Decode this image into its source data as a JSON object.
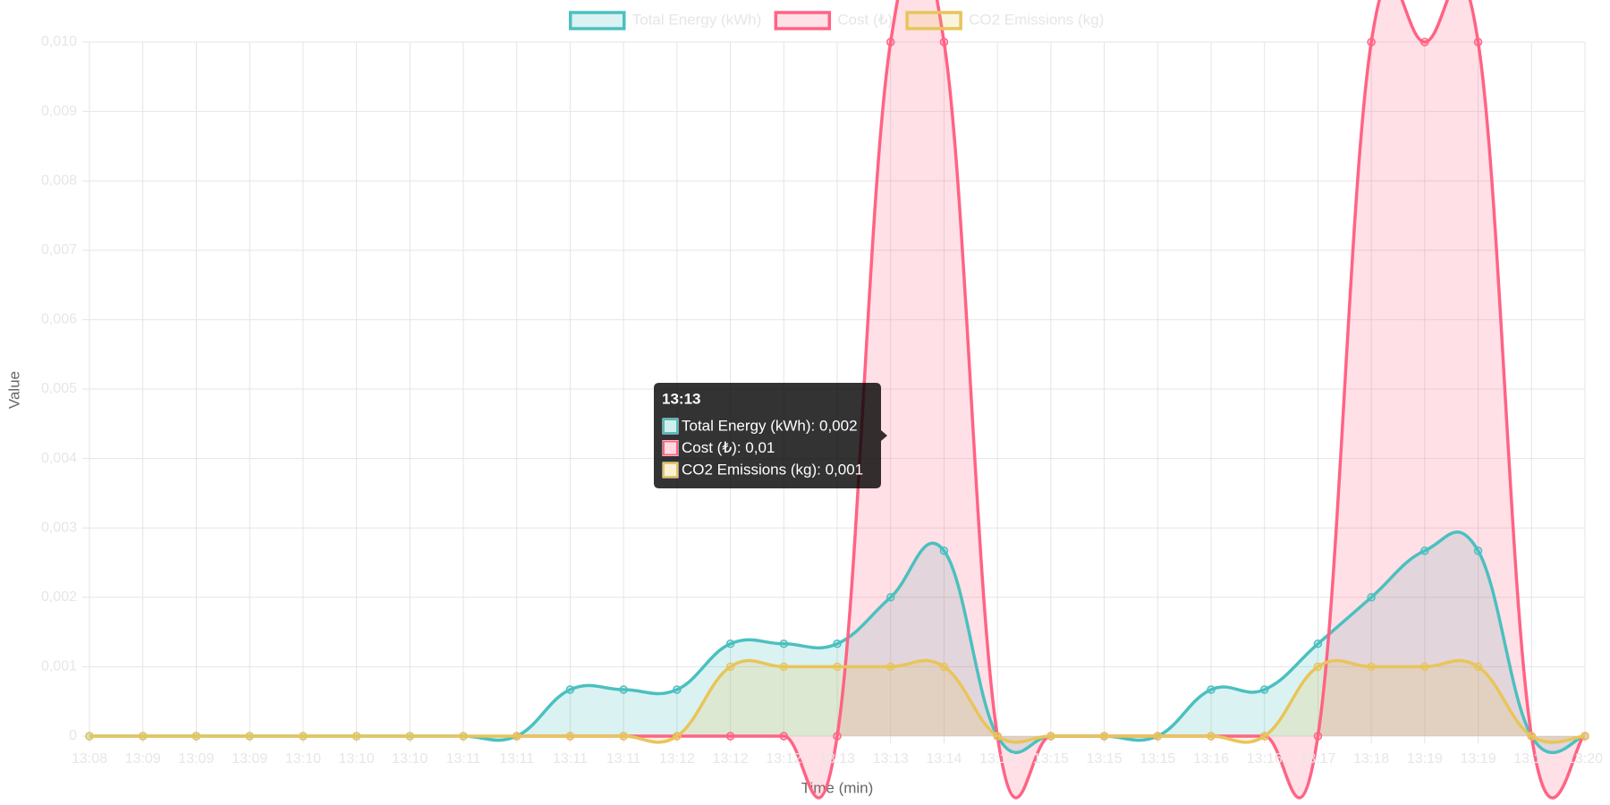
{
  "chart_data": {
    "type": "line",
    "categories": [
      "13:08",
      "13:09",
      "13:09",
      "13:09",
      "13:10",
      "13:10",
      "13:10",
      "13:11",
      "13:11",
      "13:11",
      "13:11",
      "13:12",
      "13:12",
      "13:12",
      "13:13",
      "13:13",
      "13:14",
      "13:14",
      "13:15",
      "13:15",
      "13:15",
      "13:16",
      "13:16",
      "13:17",
      "13:18",
      "13:19",
      "13:19",
      "13:19",
      "13:20"
    ],
    "series": [
      {
        "name": "Total Energy (kWh)",
        "color": "#4bc0c0",
        "values": [
          0,
          0,
          0,
          0,
          0,
          0,
          0,
          0,
          0,
          0.00067,
          0.00067,
          0.00067,
          0.00133,
          0.00133,
          0.00133,
          0.002,
          0.00267,
          0,
          0,
          0,
          0,
          0.00067,
          0.00067,
          0.00133,
          0.002,
          0.00267,
          0.00267,
          0,
          0
        ]
      },
      {
        "name": "Cost (₺)",
        "color": "#ff6384",
        "values": [
          null,
          null,
          null,
          null,
          null,
          null,
          null,
          null,
          0,
          0,
          0,
          0,
          0,
          0,
          0,
          0.01,
          0.01,
          0,
          0,
          0,
          0,
          0,
          0,
          0,
          0.01,
          0.01,
          0.01,
          0,
          0
        ]
      },
      {
        "name": "CO2 Emissions (kg)",
        "color": "#e8c55a",
        "values": [
          0,
          0,
          0,
          0,
          0,
          0,
          0,
          0,
          0,
          0,
          0,
          0,
          0.001,
          0.001,
          0.001,
          0.001,
          0.001,
          0,
          0,
          0,
          0,
          0,
          0,
          0.001,
          0.001,
          0.001,
          0.001,
          0,
          0
        ]
      }
    ],
    "ylim": [
      0,
      0.01
    ],
    "yticks": [
      0,
      {
        "value": 0.001,
        "label": "0,001"
      },
      {
        "value": 0.002,
        "label": "0,002"
      },
      {
        "value": 0.003,
        "label": "0,003"
      },
      {
        "value": 0.004,
        "label": "0,004"
      },
      {
        "value": 0.005,
        "label": "0,005"
      },
      {
        "value": 0.006,
        "label": "0,006"
      },
      {
        "value": 0.007,
        "label": "0,007"
      },
      {
        "value": 0.008,
        "label": "0,008"
      },
      {
        "value": 0.009,
        "label": "0,009"
      },
      {
        "value": 0.01,
        "label": "0,010"
      }
    ],
    "xlabel": "Time (min)",
    "ylabel": "Value",
    "grid": true,
    "legend": "top",
    "tooltip": {
      "title": "13:13",
      "lines": [
        "Total Energy (kWh): 0,002",
        "Cost (₺): 0,01",
        "CO2 Emissions (kg): 0,001"
      ]
    }
  }
}
